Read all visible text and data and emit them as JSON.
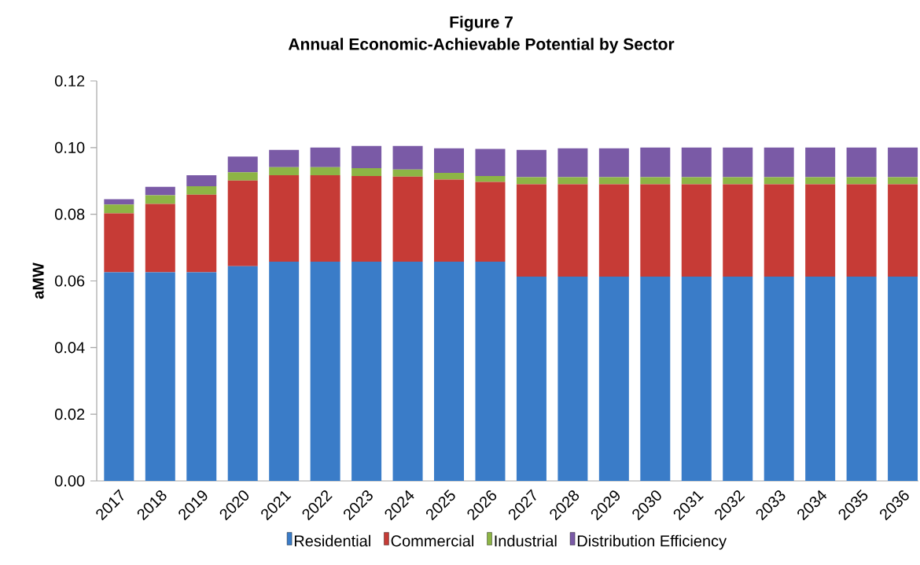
{
  "chart_data": {
    "type": "bar",
    "stacked": true,
    "title": "Figure 7",
    "subtitle": "Annual Economic-Achievable Potential by Sector",
    "ylabel": "aMW",
    "categories": [
      "2017",
      "2018",
      "2019",
      "2020",
      "2021",
      "2022",
      "2023",
      "2024",
      "2025",
      "2026",
      "2027",
      "2028",
      "2029",
      "2030",
      "2031",
      "2032",
      "2033",
      "2034",
      "2035",
      "2036"
    ],
    "series": [
      {
        "name": "Residential",
        "color": "#3a7cc8",
        "values": [
          0.0626,
          0.0626,
          0.0626,
          0.0644,
          0.0658,
          0.0658,
          0.0658,
          0.0658,
          0.0658,
          0.0658,
          0.0613,
          0.0613,
          0.0613,
          0.0613,
          0.0613,
          0.0613,
          0.0613,
          0.0613,
          0.0613,
          0.0613
        ]
      },
      {
        "name": "Commercial",
        "color": "#c63b36",
        "values": [
          0.0177,
          0.0205,
          0.0233,
          0.0257,
          0.0259,
          0.0259,
          0.0257,
          0.0255,
          0.0246,
          0.0239,
          0.0277,
          0.0277,
          0.0277,
          0.0277,
          0.0277,
          0.0277,
          0.0277,
          0.0277,
          0.0277,
          0.0277
        ]
      },
      {
        "name": "Industrial",
        "color": "#8db545",
        "values": [
          0.0026,
          0.0026,
          0.0025,
          0.0025,
          0.0024,
          0.0024,
          0.0023,
          0.0021,
          0.002,
          0.0018,
          0.0021,
          0.0021,
          0.0021,
          0.0021,
          0.0021,
          0.0021,
          0.0021,
          0.0021,
          0.0021,
          0.0021
        ]
      },
      {
        "name": "Distribution Efficiency",
        "color": "#7a5aa6",
        "values": [
          0.0016,
          0.0025,
          0.0033,
          0.0047,
          0.0052,
          0.0059,
          0.0067,
          0.0071,
          0.0074,
          0.0081,
          0.0082,
          0.0087,
          0.0087,
          0.0089,
          0.0089,
          0.0089,
          0.0089,
          0.0089,
          0.0089,
          0.0089
        ]
      }
    ],
    "ylim": [
      0,
      0.12
    ],
    "yticks": [
      {
        "value": 0,
        "label": "0.00"
      },
      {
        "value": 0.02,
        "label": "0.02"
      },
      {
        "value": 0.04,
        "label": "0.04"
      },
      {
        "value": 0.06,
        "label": "0.06"
      },
      {
        "value": 0.08,
        "label": "0.08"
      },
      {
        "value": 0.1,
        "label": "0.10"
      },
      {
        "value": 0.12,
        "label": "0.12"
      }
    ],
    "grid": false,
    "legend": "bottom"
  }
}
